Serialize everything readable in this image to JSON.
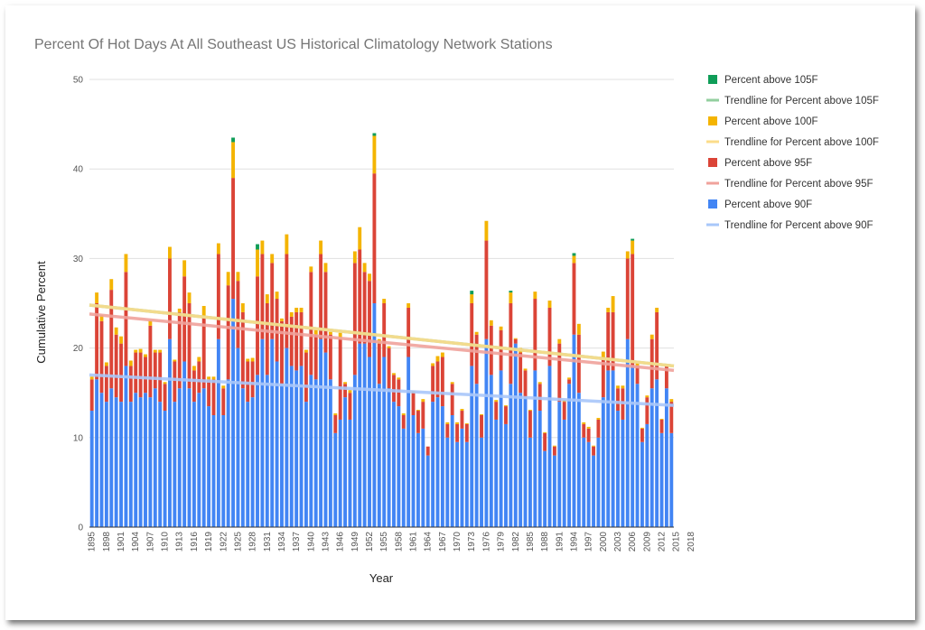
{
  "chart_data": {
    "type": "bar",
    "stacked": true,
    "title": "Percent Of Hot Days At All Southeast US Historical Climatology Network Stations",
    "xlabel": "Year",
    "ylabel": "Cumulative Percent",
    "ylim": [
      0,
      50
    ],
    "yticks": [
      0,
      10,
      20,
      30,
      40,
      50
    ],
    "grid": true,
    "legend_position": "right",
    "x_start": 1895,
    "x_end": 2019,
    "xticks": [
      1895,
      1898,
      1901,
      1904,
      1907,
      1910,
      1913,
      1916,
      1919,
      1922,
      1925,
      1928,
      1931,
      1934,
      1937,
      1940,
      1943,
      1946,
      1949,
      1952,
      1955,
      1958,
      1961,
      1964,
      1967,
      1970,
      1973,
      1976,
      1979,
      1982,
      1985,
      1988,
      1991,
      1994,
      1997,
      2000,
      2003,
      2006,
      2009,
      2012,
      2015,
      2018
    ],
    "series": [
      {
        "name": "Percent above 90F",
        "color": "#4285f4",
        "values": [
          13.0,
          16.5,
          15.0,
          14.0,
          15.5,
          14.5,
          14.0,
          18.0,
          14.0,
          15.0,
          14.5,
          15.0,
          14.5,
          15.5,
          14.0,
          13.0,
          21.0,
          14.0,
          15.5,
          18.5,
          15.5,
          14.0,
          15.0,
          15.5,
          13.5,
          12.5,
          21.0,
          12.5,
          16.5,
          25.5,
          20.0,
          15.5,
          14.0,
          14.5,
          17.0,
          21.0,
          17.0,
          21.0,
          18.5,
          16.0,
          20.0,
          18.0,
          17.5,
          18.0,
          14.0,
          17.0,
          16.5,
          21.0,
          19.5,
          16.5,
          10.5,
          12.0,
          14.5,
          12.0,
          17.0,
          20.5,
          20.5,
          19.0,
          25.0,
          16.0,
          19.0,
          15.5,
          14.0,
          13.5,
          11.0,
          19.0,
          12.5,
          10.5,
          11.0,
          8.0,
          14.0,
          14.5,
          13.5,
          10.0,
          12.5,
          9.5,
          11.0,
          9.5,
          18.0,
          16.0,
          10.0,
          21.0,
          17.0,
          12.0,
          17.5,
          11.5,
          16.0,
          20.5,
          15.0,
          14.5,
          10.0,
          17.5,
          13.0,
          8.5,
          18.0,
          8.0,
          14.0,
          12.0,
          16.0,
          21.5,
          15.0,
          10.0,
          9.5,
          8.0,
          10.0,
          14.5,
          17.5,
          17.5,
          13.0,
          12.0,
          21.0,
          18.0,
          16.0,
          9.5,
          11.5,
          15.5,
          16.5,
          10.5,
          15.5,
          10.5
        ]
      },
      {
        "name": "Percent above 95F",
        "color": "#db4437",
        "values": [
          3.5,
          8.5,
          8.0,
          4.0,
          11.0,
          7.0,
          6.5,
          10.5,
          4.0,
          4.5,
          5.0,
          4.0,
          8.0,
          4.0,
          5.5,
          3.0,
          9.0,
          4.5,
          8.5,
          9.5,
          9.5,
          3.5,
          3.5,
          8.0,
          3.0,
          4.0,
          9.5,
          3.0,
          10.5,
          13.5,
          7.5,
          8.5,
          4.5,
          4.0,
          11.0,
          9.5,
          8.0,
          8.5,
          7.0,
          7.0,
          10.5,
          5.5,
          6.5,
          6.0,
          5.5,
          11.5,
          5.0,
          9.5,
          9.0,
          5.0,
          2.0,
          9.0,
          1.5,
          3.0,
          12.5,
          10.5,
          8.0,
          8.5,
          14.5,
          4.5,
          6.0,
          4.5,
          3.0,
          3.0,
          1.5,
          5.5,
          2.5,
          2.5,
          3.0,
          1.0,
          4.0,
          4.0,
          5.5,
          1.5,
          3.5,
          2.0,
          2.0,
          2.0,
          7.0,
          5.5,
          2.5,
          11.0,
          5.5,
          2.0,
          4.5,
          2.0,
          9.0,
          0.5,
          4.5,
          3.0,
          3.0,
          8.0,
          3.0,
          2.0,
          6.5,
          1.0,
          6.5,
          2.0,
          0.5,
          8.0,
          6.5,
          1.5,
          1.5,
          1.0,
          2.0,
          4.5,
          6.5,
          6.5,
          2.5,
          3.5,
          9.0,
          12.5,
          2.0,
          1.5,
          3.0,
          5.5,
          7.5,
          1.5,
          2.5,
          3.5
        ]
      },
      {
        "name": "Percent above 100F",
        "color": "#f4b400",
        "values": [
          0.3,
          1.2,
          0.7,
          0.4,
          1.2,
          0.8,
          0.8,
          2.0,
          0.6,
          0.3,
          0.4,
          0.3,
          0.6,
          0.3,
          0.3,
          0.2,
          1.3,
          0.2,
          0.4,
          1.8,
          1.2,
          0.5,
          0.5,
          1.2,
          0.3,
          0.3,
          1.2,
          0.3,
          1.5,
          4.0,
          1.0,
          1.0,
          0.3,
          0.4,
          3.0,
          1.5,
          1.0,
          1.0,
          0.8,
          0.3,
          2.2,
          0.5,
          0.5,
          0.5,
          0.3,
          0.6,
          0.5,
          1.5,
          1.0,
          0.3,
          0.2,
          0.7,
          0.2,
          0.3,
          1.3,
          2.5,
          1.0,
          0.8,
          4.2,
          0.5,
          0.5,
          0.2,
          0.2,
          0.2,
          0.2,
          0.5,
          0.2,
          0.1,
          0.3,
          0.0,
          0.3,
          0.6,
          0.5,
          0.2,
          0.2,
          0.2,
          0.2,
          0.1,
          1.0,
          0.3,
          0.1,
          2.2,
          0.6,
          0.2,
          0.4,
          0.1,
          1.2,
          0.1,
          0.5,
          0.2,
          0.1,
          0.8,
          0.2,
          0.1,
          0.8,
          0.1,
          0.5,
          0.2,
          0.2,
          0.8,
          1.2,
          0.2,
          0.2,
          0.1,
          0.2,
          0.6,
          0.5,
          1.8,
          0.3,
          0.3,
          0.8,
          1.5,
          0.3,
          0.1,
          0.2,
          0.5,
          0.5,
          0.1,
          0.2,
          0.3
        ]
      },
      {
        "name": "Percent above 105F",
        "color": "#0f9d58",
        "values": [
          0,
          0,
          0,
          0,
          0,
          0,
          0,
          0,
          0,
          0,
          0,
          0,
          0,
          0,
          0,
          0,
          0,
          0,
          0,
          0,
          0,
          0,
          0,
          0,
          0,
          0,
          0,
          0,
          0,
          0.5,
          0,
          0,
          0,
          0,
          0.6,
          0,
          0,
          0,
          0,
          0,
          0,
          0,
          0,
          0,
          0,
          0,
          0,
          0,
          0,
          0,
          0,
          0,
          0,
          0,
          0,
          0,
          0,
          0,
          0.3,
          0,
          0,
          0,
          0,
          0,
          0,
          0,
          0,
          0,
          0,
          0,
          0,
          0,
          0,
          0,
          0,
          0,
          0,
          0,
          0.4,
          0,
          0,
          0,
          0,
          0,
          0,
          0,
          0.2,
          0,
          0,
          0,
          0,
          0,
          0,
          0,
          0,
          0,
          0,
          0,
          0,
          0.3,
          0,
          0,
          0,
          0,
          0,
          0,
          0,
          0,
          0,
          0,
          0,
          0.2,
          0,
          0,
          0,
          0,
          0,
          0,
          0,
          0
        ]
      }
    ],
    "trendlines": [
      {
        "name": "Trendline for Percent above 105F",
        "color": "#93cf9f",
        "y_start": 24.8,
        "y_end": 18.0
      },
      {
        "name": "Trendline for Percent above 100F",
        "color": "#fbdc8a",
        "y_start": 24.8,
        "y_end": 18.0
      },
      {
        "name": "Trendline for Percent above 95F",
        "color": "#f0a29b",
        "y_start": 23.8,
        "y_end": 17.5
      },
      {
        "name": "Trendline for Percent above 90F",
        "color": "#a8c7fa",
        "y_start": 17.0,
        "y_end": 13.6
      }
    ],
    "legend": [
      {
        "label": "Percent above 105F",
        "kind": "box",
        "color": "#0f9d58"
      },
      {
        "label": "Trendline for Percent above 105F",
        "kind": "line",
        "color": "#93cf9f"
      },
      {
        "label": "Percent above 100F",
        "kind": "box",
        "color": "#f4b400"
      },
      {
        "label": "Trendline for Percent above 100F",
        "kind": "line",
        "color": "#fbdc8a"
      },
      {
        "label": "Percent above 95F",
        "kind": "box",
        "color": "#db4437"
      },
      {
        "label": "Trendline for Percent above 95F",
        "kind": "line",
        "color": "#f0a29b"
      },
      {
        "label": "Percent above 90F",
        "kind": "box",
        "color": "#4285f4"
      },
      {
        "label": "Trendline for Percent above 90F",
        "kind": "line",
        "color": "#a8c7fa"
      }
    ]
  }
}
